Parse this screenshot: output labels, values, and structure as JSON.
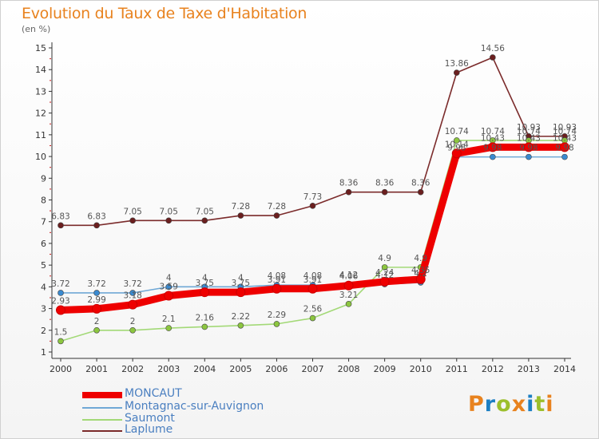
{
  "title": "Evolution du Taux de Taxe d'Habitation",
  "subtitle": "(en %)",
  "logo": {
    "text": "Proxiti",
    "colors": [
      "#e8821e",
      "#1c7fc3",
      "#9cbf2c",
      "#e8821e",
      "#1c7fc3",
      "#9cbf2c",
      "#e8821e"
    ]
  },
  "chart_data": {
    "type": "line",
    "x": [
      2000,
      2001,
      2002,
      2003,
      2004,
      2005,
      2006,
      2007,
      2008,
      2009,
      2010,
      2011,
      2012,
      2013,
      2014
    ],
    "ylim": [
      1,
      15
    ],
    "yticks": [
      1,
      2,
      3,
      4,
      5,
      6,
      7,
      8,
      9,
      10,
      11,
      12,
      13,
      14,
      15
    ],
    "grid": false,
    "legend_position": "bottom-left",
    "series": [
      {
        "name": "Laplume",
        "color": "#7b2b2b",
        "marker": "#6b1f1f",
        "values": [
          6.83,
          6.83,
          7.05,
          7.05,
          7.05,
          7.28,
          7.28,
          7.73,
          8.36,
          8.36,
          8.36,
          13.86,
          14.56,
          10.93,
          10.93
        ],
        "labels": [
          "6.83",
          "6.83",
          "7.05",
          "7.05",
          "7.05",
          "7.28",
          "7.28",
          "7.73",
          "8.36",
          "8.36",
          "8.36",
          "13.86",
          "14.56",
          "10.93",
          "10.93"
        ]
      },
      {
        "name": "Saumont",
        "color": "#a3d977",
        "marker": "#8cc63f",
        "values": [
          1.5,
          2,
          2,
          2.1,
          2.16,
          2.22,
          2.29,
          2.56,
          3.21,
          4.9,
          4.9,
          10.74,
          10.74,
          10.74,
          10.74
        ],
        "labels": [
          "1.5",
          "2",
          "2",
          "2.1",
          "2.16",
          "2.22",
          "2.29",
          "2.56",
          "3.21",
          "4.9",
          "4.9",
          "10.74",
          "10.74",
          "10.74",
          "10.74"
        ]
      },
      {
        "name": "Montagnac-sur-Auvignon",
        "color": "#6fa8d6",
        "marker": "#3a8ad0",
        "values": [
          3.72,
          3.72,
          3.72,
          4,
          4,
          4,
          4.08,
          4.08,
          4.12,
          4.12,
          4.2,
          9.98,
          9.98,
          9.98,
          9.98
        ],
        "labels": [
          "3.72",
          "3.72",
          "3.72",
          "4",
          "4",
          "4",
          "4.08",
          "4.08",
          "4.12",
          "4.12",
          "4.2",
          "9.98",
          "9.98",
          "9.98",
          "9.98"
        ]
      },
      {
        "name": "MONCAUT",
        "color": "#ee0000",
        "marker": "#ee0000",
        "values": [
          2.93,
          2.99,
          3.18,
          3.59,
          3.75,
          3.75,
          3.91,
          3.91,
          4.06,
          4.24,
          4.35,
          10.14,
          10.43,
          10.43,
          10.43
        ],
        "labels": [
          "2.93",
          "2.99",
          "3.18",
          "3.59",
          "3.75",
          "3.75",
          "3.91",
          "3.91",
          "4.06",
          "4.24",
          "4.35",
          "10.14",
          "10.43",
          "10.43",
          "10.43"
        ]
      }
    ],
    "legend": [
      {
        "name": "MONCAUT",
        "color": "#ee0000",
        "text_color": "#4a7fc0"
      },
      {
        "name": "Montagnac-sur-Auvignon",
        "color": "#6fa8d6",
        "text_color": "#4a7fc0"
      },
      {
        "name": "Saumont",
        "color": "#a3d977",
        "text_color": "#4a7fc0"
      },
      {
        "name": "Laplume",
        "color": "#7b2b2b",
        "text_color": "#4a7fc0"
      }
    ]
  }
}
